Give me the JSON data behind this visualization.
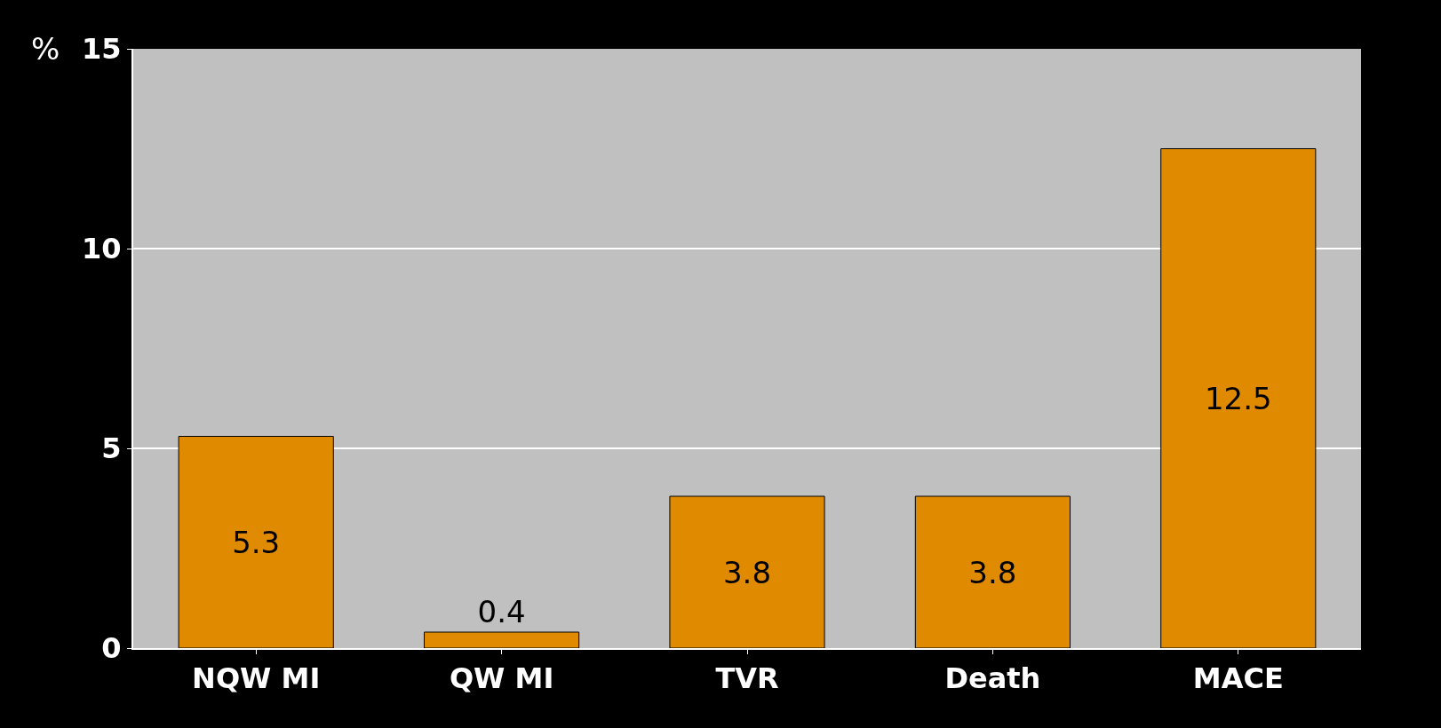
{
  "chart_data": {
    "type": "bar",
    "ylabel": "%",
    "categories": [
      "NQW MI",
      "QW MI",
      "TVR",
      "Death",
      "MACE"
    ],
    "values": [
      5.3,
      0.4,
      3.8,
      3.8,
      12.5
    ],
    "color": "#e08a00",
    "ylim": [
      0,
      15
    ],
    "yticks": [
      0,
      5,
      10,
      15
    ],
    "grid": "y",
    "data_labels": true
  }
}
